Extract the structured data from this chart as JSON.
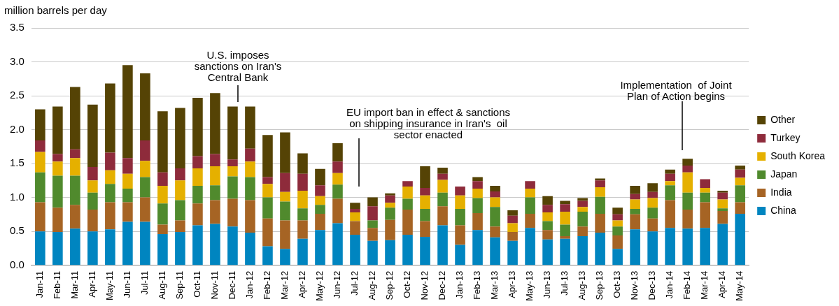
{
  "chart_data": {
    "type": "bar",
    "stacked": true,
    "ylabel": "million barrels per day",
    "categories": [
      "Jan-11",
      "Feb-11",
      "Mar-11",
      "Apr-11",
      "May-11",
      "Jun-11",
      "Jul-11",
      "Aug-11",
      "Sep-11",
      "Oct-11",
      "Nov-11",
      "Dec-11",
      "Jan-12",
      "Feb-12",
      "Mar-12",
      "Apr-12",
      "May-12",
      "Jun-12",
      "Jul-12",
      "Aug-12",
      "Sep-12",
      "Oct-12",
      "Nov-12",
      "Dec-12",
      "Jan-13",
      "Feb-13",
      "Mar-13",
      "Apr-13",
      "May-13",
      "Jun-13",
      "Jul-13",
      "Aug-13",
      "Sep-13",
      "Oct-13",
      "Nov-13",
      "Dec-13",
      "Jan-14",
      "Feb-14",
      "Mar-14",
      "Apr-14",
      "May-14"
    ],
    "series": [
      {
        "name": "China",
        "color": "#0085c0",
        "values": [
          0.5,
          0.49,
          0.54,
          0.5,
          0.53,
          0.64,
          0.64,
          0.46,
          0.49,
          0.59,
          0.61,
          0.57,
          0.48,
          0.28,
          0.24,
          0.39,
          0.52,
          0.62,
          0.45,
          0.36,
          0.37,
          0.45,
          0.42,
          0.59,
          0.3,
          0.52,
          0.41,
          0.36,
          0.55,
          0.38,
          0.39,
          0.43,
          0.48,
          0.24,
          0.53,
          0.5,
          0.55,
          0.54,
          0.55,
          0.61,
          0.76
        ]
      },
      {
        "name": "India",
        "color": "#a66424",
        "values": [
          0.43,
          0.36,
          0.35,
          0.32,
          0.4,
          0.29,
          0.36,
          0.14,
          0.17,
          0.32,
          0.35,
          0.41,
          0.48,
          0.41,
          0.42,
          0.27,
          0.24,
          0.36,
          0.2,
          0.19,
          0.3,
          0.37,
          0.23,
          0.28,
          0.29,
          0.25,
          0.16,
          0.13,
          0.21,
          0.14,
          0.04,
          0.14,
          0.28,
          0.2,
          0.22,
          0.19,
          0.41,
          0.28,
          0.38,
          0.19,
          0.17
        ]
      },
      {
        "name": "Japan",
        "color": "#508a2d",
        "values": [
          0.44,
          0.47,
          0.43,
          0.25,
          0.27,
          0.2,
          0.3,
          0.31,
          0.3,
          0.26,
          0.22,
          0.33,
          0.34,
          0.31,
          0.28,
          0.18,
          0.13,
          0.21,
          0,
          0.11,
          0.18,
          0.16,
          0.18,
          0.2,
          0.24,
          0.22,
          0.29,
          0,
          0.24,
          0.13,
          0.17,
          0.22,
          0.25,
          0.13,
          0.08,
          0.16,
          0.22,
          0.25,
          0.14,
          0.04,
          0.25
        ]
      },
      {
        "name": "South Korea",
        "color": "#e5b000",
        "values": [
          0.3,
          0.21,
          0.26,
          0.18,
          0.2,
          0.22,
          0.24,
          0.26,
          0.29,
          0.26,
          0.28,
          0.15,
          0.23,
          0.2,
          0.14,
          0.26,
          0.13,
          0.17,
          0.13,
          0,
          0.07,
          0.18,
          0.2,
          0.19,
          0.2,
          0.14,
          0.14,
          0.13,
          0.13,
          0.13,
          0.19,
          0.07,
          0.14,
          0.09,
          0.14,
          0.14,
          0.06,
          0.3,
          0.07,
          0.13,
          0.11
        ]
      },
      {
        "name": "Turkey",
        "color": "#8e2b3b",
        "values": [
          0.17,
          0.11,
          0.13,
          0.2,
          0.26,
          0.23,
          0.3,
          0.2,
          0.18,
          0.18,
          0.18,
          0.1,
          0.19,
          0.1,
          0.28,
          0.25,
          0.16,
          0.17,
          0.05,
          0.21,
          0.11,
          0.08,
          0.11,
          0.09,
          0.13,
          0.11,
          0.09,
          0.11,
          0.11,
          0.11,
          0.11,
          0.09,
          0.1,
          0.09,
          0.08,
          0.09,
          0.11,
          0.1,
          0.13,
          0.1,
          0.12
        ]
      },
      {
        "name": "Other",
        "color": "#554305",
        "values": [
          0.46,
          0.7,
          0.92,
          0.92,
          1.02,
          1.37,
          0.99,
          0.9,
          0.89,
          0.86,
          0.9,
          0.78,
          0.62,
          0.62,
          0.6,
          0.3,
          0.24,
          0.27,
          0.09,
          0.13,
          0.03,
          0,
          0.32,
          0.09,
          0,
          0.06,
          0.08,
          0.08,
          0,
          0.13,
          0.05,
          0.04,
          0.03,
          0.1,
          0.12,
          0.13,
          0.06,
          0.1,
          0,
          0.03,
          0.06
        ]
      }
    ],
    "ylim": [
      0,
      3.5
    ],
    "yticks": [
      {
        "value": 0,
        "label": "0.0"
      },
      0.5,
      {
        "value": 1,
        "label": "1.0"
      },
      1.5,
      {
        "value": 2,
        "label": "2.0"
      },
      2.5,
      {
        "value": 3,
        "label": "3.0"
      },
      3.5
    ],
    "grid": "y",
    "legend": "right",
    "annotations": [
      "U.S. imposes\nsanctions on Iran's\nCentral Bank",
      "EU import ban in effect & sanctions\non shipping insurance in Iran's  oil\nsector enacted",
      "Implementation  of Joint\nPlan of Action begins"
    ]
  }
}
